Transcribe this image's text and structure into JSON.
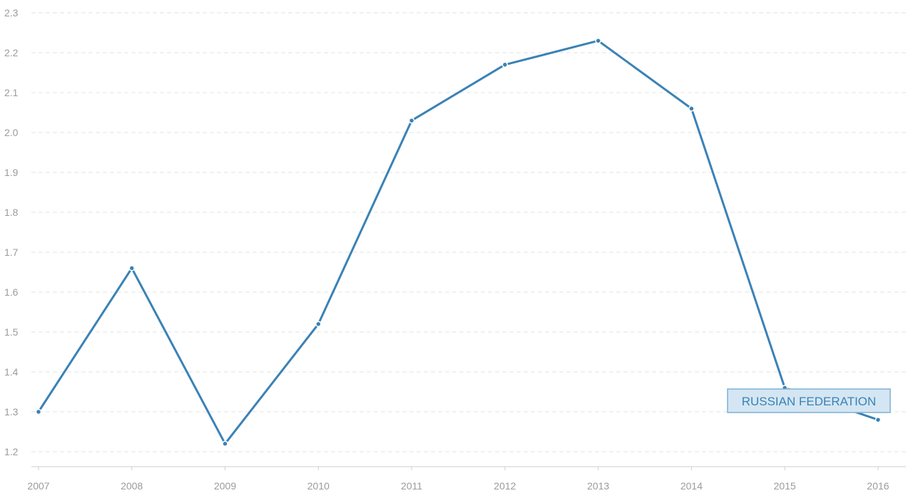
{
  "chart_data": {
    "type": "line",
    "title": "",
    "xlabel": "",
    "ylabel": "",
    "x": [
      "2007",
      "2008",
      "2009",
      "2010",
      "2011",
      "2012",
      "2013",
      "2014",
      "2015",
      "2016"
    ],
    "series": [
      {
        "name": "RUSSIAN FEDERATION",
        "values": [
          1.3,
          1.66,
          1.22,
          1.52,
          2.03,
          2.17,
          2.23,
          2.06,
          1.36,
          1.28
        ],
        "color": "#3a82b5"
      }
    ],
    "ylim": [
      1.2,
      2.3
    ],
    "yticks": [
      "1.2",
      "1.3",
      "1.4",
      "1.5",
      "1.6",
      "1.7",
      "1.8",
      "1.9",
      "2.0",
      "2.1",
      "2.2",
      "2.3"
    ],
    "grid": true,
    "legend": "inline label near end of series (bottom-right)",
    "colors": {
      "label_box_fill": "#d4e6f3",
      "label_box_stroke": "#7fb1d4",
      "label_text": "#3a82b5"
    }
  }
}
